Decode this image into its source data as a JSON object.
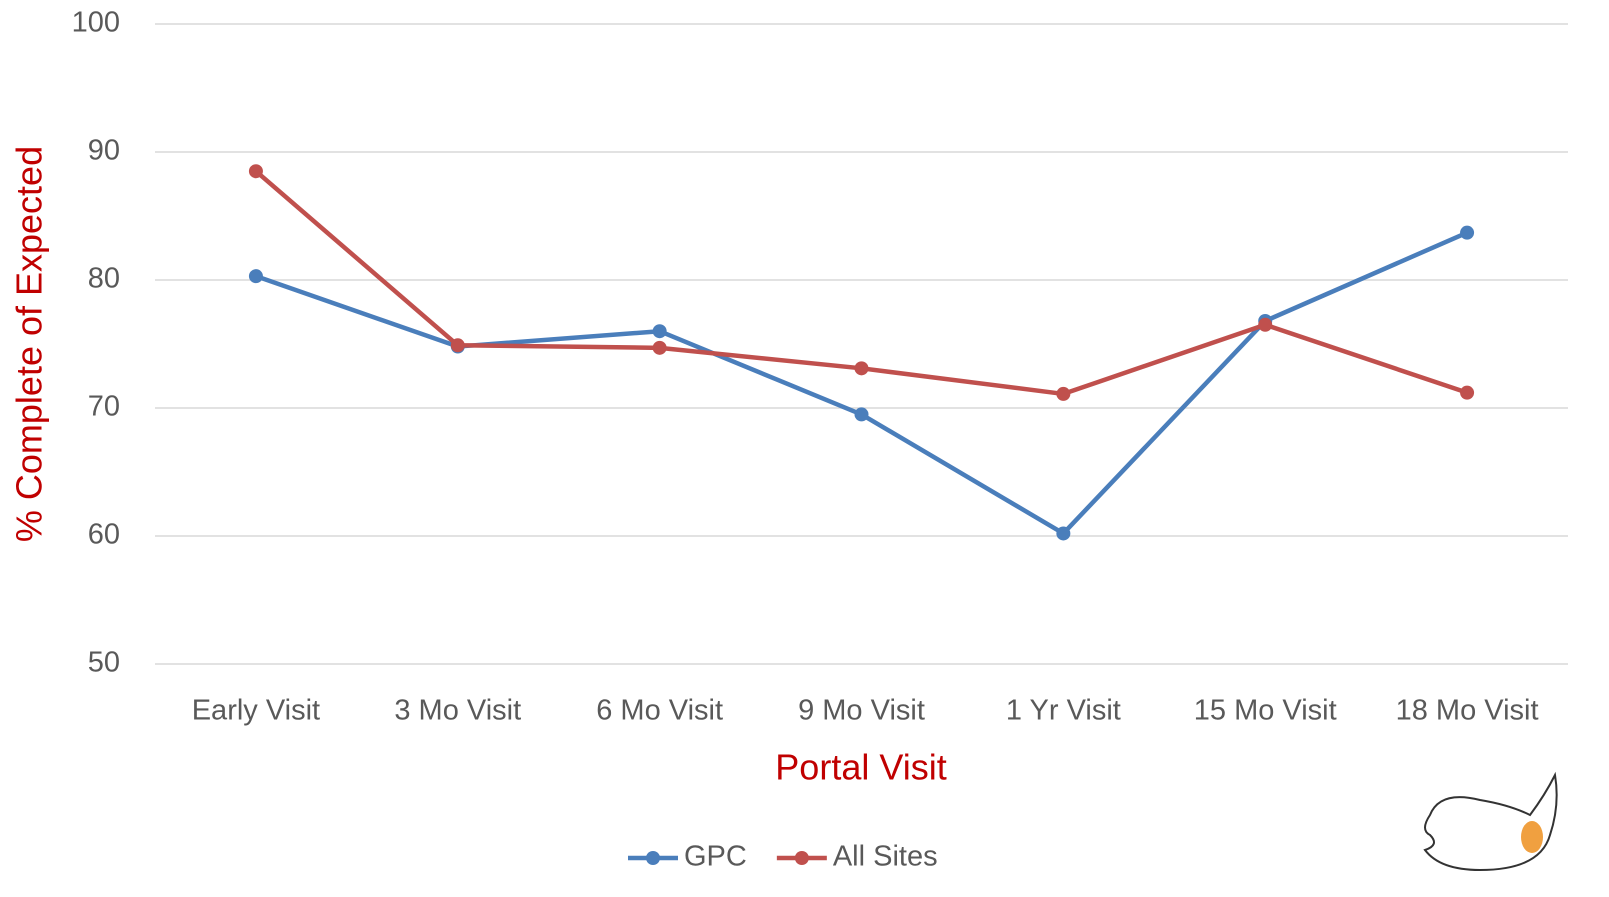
{
  "chart_data": {
    "type": "line",
    "x_label": "Portal Visit",
    "y_label": "% Complete of Expected",
    "categories": [
      "Early Visit",
      "3 Mo Visit",
      "6 Mo Visit",
      "9 Mo Visit",
      "1 Yr Visit",
      "15 Mo Visit",
      "18 Mo Visit"
    ],
    "series": [
      {
        "name": "GPC",
        "color": "#4a7ebb",
        "values": [
          80.3,
          74.8,
          76.0,
          69.5,
          60.2,
          76.8,
          83.7
        ]
      },
      {
        "name": "All Sites",
        "color": "#c0504d",
        "values": [
          88.5,
          74.9,
          74.7,
          73.1,
          71.1,
          76.5,
          71.2
        ]
      }
    ],
    "ylim": [
      50,
      100
    ],
    "yticks": [
      50,
      60,
      70,
      80,
      90,
      100
    ],
    "grid": true,
    "legend": "bottom"
  }
}
